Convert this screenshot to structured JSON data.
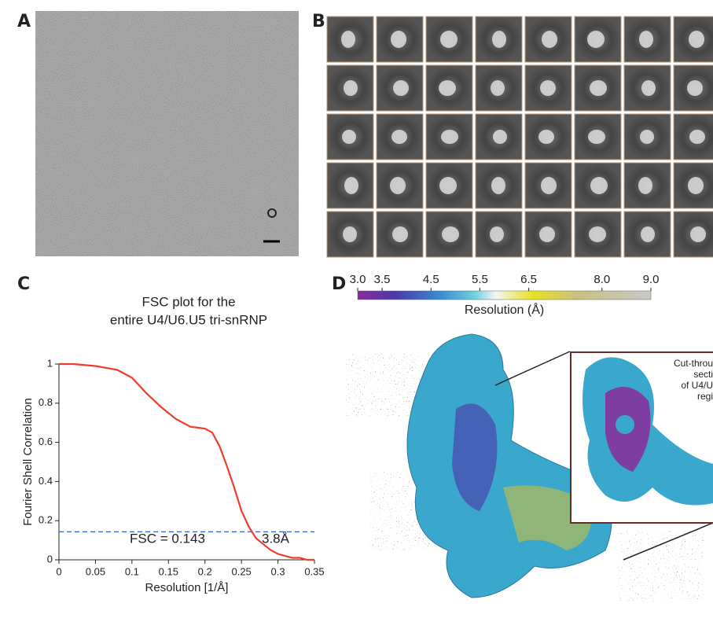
{
  "panels": {
    "a": {
      "label": "A"
    },
    "b": {
      "label": "B"
    },
    "c": {
      "label": "C"
    },
    "d": {
      "label": "D",
      "colorbar": {
        "label": "Resolution (Å)",
        "lim": [
          3,
          9
        ],
        "ticks": [
          {
            "value": 3,
            "label": "3.0"
          },
          3.5,
          4.5,
          5.5,
          6.5,
          {
            "value": 8,
            "label": "8.0"
          },
          {
            "value": 9,
            "label": "9.0"
          }
        ]
      },
      "inset_text": [
        "Cut-throu",
        "secti",
        "of U4/U",
        "regi"
      ]
    }
  },
  "chart_data": {
    "type": "line",
    "title": [
      "FSC plot for the",
      "entire U4/U6.U5 tri-snRNP"
    ],
    "x_label": "Resolution  [1/Å]",
    "y_label": "Fourier Shell Correlation",
    "x": [
      0,
      0.02,
      0.05,
      0.08,
      0.1,
      0.12,
      0.14,
      0.16,
      0.18,
      0.2,
      0.21,
      0.22,
      0.23,
      0.24,
      0.25,
      0.26,
      0.27,
      0.28,
      0.29,
      0.3,
      0.31,
      0.32,
      0.33,
      0.34,
      0.35
    ],
    "series": [
      {
        "color": "#f03c2a",
        "values": [
          1,
          1,
          0.99,
          0.97,
          0.93,
          0.85,
          0.78,
          0.72,
          0.68,
          0.67,
          0.65,
          0.58,
          0.48,
          0.37,
          0.25,
          0.17,
          0.11,
          0.08,
          0.05,
          0.03,
          0.02,
          0.01,
          0.01,
          0,
          0
        ]
      }
    ],
    "threshold": {
      "value": 0.143,
      "label": "FSC = 0.143",
      "color": "#3060d0"
    },
    "resolution_label": "3.8Å",
    "xlim": [
      0,
      0.35
    ],
    "ylim": [
      0,
      1
    ],
    "xticks": [
      0,
      0.05,
      0.1,
      0.15,
      0.2,
      0.25,
      0.3,
      0.35
    ],
    "yticks": [
      0,
      0.2,
      0.4,
      0.6,
      0.8,
      1
    ]
  }
}
